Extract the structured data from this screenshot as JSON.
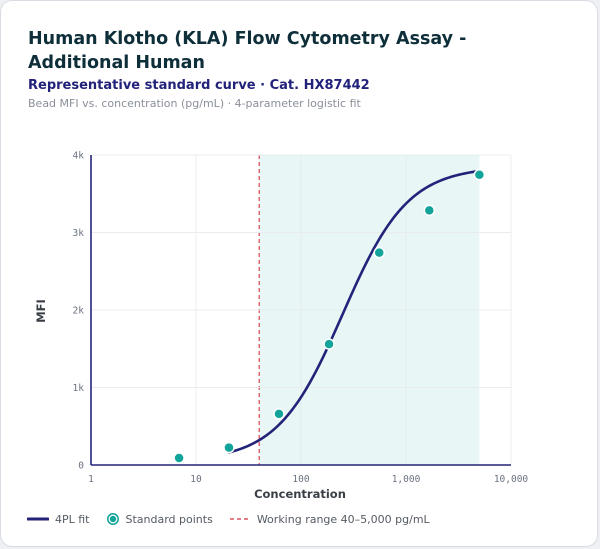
{
  "header": {
    "title": "Human Klotho (KLA) Flow Cytometry Assay - Additional Human",
    "subtitle": "Representative standard curve · Cat. HX87442",
    "caption": "Bead MFI vs. concentration (pg/mL) · 4-parameter logistic fit"
  },
  "chart_data": {
    "type": "scatter",
    "xlabel": "Concentration",
    "ylabel": "MFI",
    "x_scale": "log",
    "xlim": [
      1,
      10000
    ],
    "ylim": [
      0,
      4000
    ],
    "x_ticks": [
      1,
      10,
      100,
      1000,
      10000
    ],
    "x_tick_labels": [
      "1",
      "10",
      "100",
      "1,000",
      "10,000"
    ],
    "y_ticks": [
      0,
      1000,
      2000,
      3000,
      4000
    ],
    "y_tick_labels": [
      "0",
      "1k",
      "2k",
      "3k",
      "4k"
    ],
    "grid": true,
    "working_range": [
      40,
      5000
    ],
    "series": [
      {
        "name": "Standard points",
        "kind": "points",
        "x": [
          6.9,
          20.6,
          61.7,
          185,
          556,
          1667,
          5000
        ],
        "y": [
          90,
          225,
          660,
          1560,
          2740,
          3285,
          3745
        ]
      },
      {
        "name": "4PL fit",
        "kind": "curve",
        "x_range": [
          20.6,
          5000
        ],
        "params": {
          "a": 50,
          "d": 3850,
          "c": 250,
          "b": 1.4
        }
      }
    ],
    "colors": {
      "fit": "#23237a",
      "points": "#12a39b",
      "points_stroke": "#ffffff",
      "range_line": "#d9545b",
      "range_fill": "#e8f6f6",
      "grid": "#e9ecef",
      "axis": "#23237a"
    }
  },
  "legend": {
    "fit_label": "4PL fit",
    "points_label": "Standard points",
    "range_label": "Working range 40–5,000 pg/mL"
  }
}
